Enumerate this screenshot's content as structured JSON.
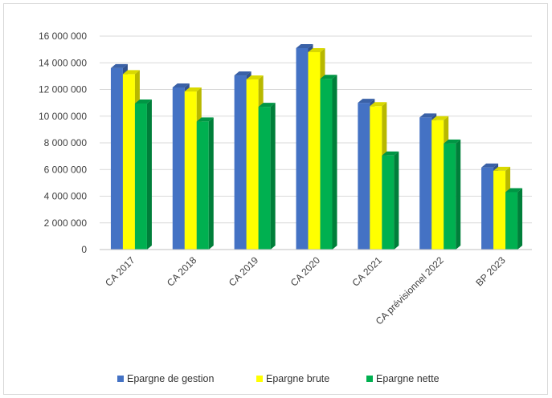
{
  "chart_data": {
    "type": "bar",
    "style": "3d-clustered-column",
    "categories": [
      "CA 2017",
      "CA 2018",
      "CA 2019",
      "CA 2020",
      "CA 2021",
      "CA prévisionnel 2022",
      "BP 2023"
    ],
    "series": [
      {
        "name": "Epargne de gestion",
        "color": "#4472C4",
        "values": [
          13600000,
          12150000,
          13050000,
          15100000,
          11000000,
          9900000,
          6150000
        ]
      },
      {
        "name": "Epargne brute",
        "color": "#FFFF00",
        "values": [
          13150000,
          11850000,
          12750000,
          14800000,
          10750000,
          9700000,
          5900000
        ]
      },
      {
        "name": "Epargne nette",
        "color": "#00B050",
        "values": [
          10950000,
          9600000,
          10700000,
          12800000,
          7050000,
          7950000,
          4300000
        ]
      }
    ],
    "y_ticks": [
      "0",
      "2 000 000",
      "4 000 000",
      "6 000 000",
      "8 000 000",
      "10 000 000",
      "12 000 000",
      "14 000 000",
      "16 000 000"
    ],
    "ylim": [
      0,
      16000000
    ],
    "ystep": 2000000,
    "grid": true,
    "legend_position": "bottom"
  }
}
